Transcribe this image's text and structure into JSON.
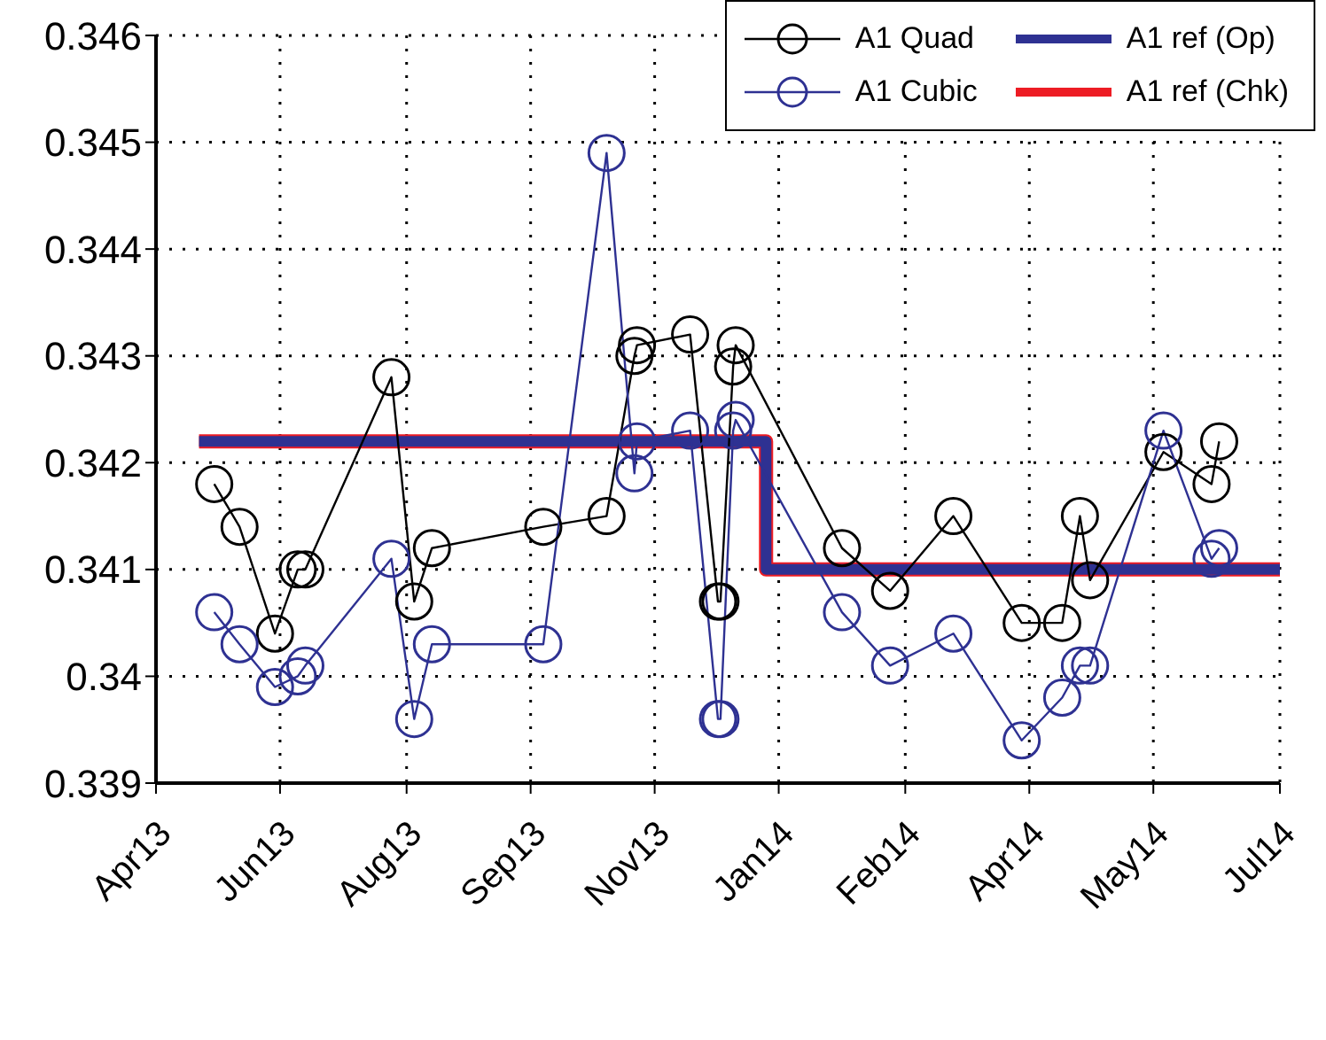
{
  "chart_data": {
    "type": "line",
    "x": [
      "2013-05-23",
      "2013-06-02",
      "2013-06-16",
      "2013-06-25",
      "2013-06-28",
      "2013-08-01",
      "2013-08-10",
      "2013-08-17",
      "2013-09-30",
      "2013-10-25",
      "2013-11-05",
      "2013-11-06",
      "2013-11-27",
      "2013-12-08",
      "2013-12-09",
      "2013-12-14",
      "2013-12-15",
      "2014-01-26",
      "2014-02-14",
      "2014-03-11",
      "2014-04-07",
      "2014-04-23",
      "2014-04-30",
      "2014-05-04",
      "2014-06-02",
      "2014-06-21",
      "2014-06-24"
    ],
    "series": [
      {
        "name": "A1 Quad",
        "color": "#000000",
        "values": [
          0.3418,
          0.3414,
          0.3404,
          0.341,
          0.341,
          0.3428,
          0.3407,
          0.3412,
          0.3414,
          0.3415,
          0.343,
          0.3431,
          0.3432,
          0.3407,
          0.3407,
          0.3429,
          0.3431,
          0.3412,
          0.3408,
          0.3415,
          0.3405,
          0.3405,
          0.3415,
          0.3409,
          0.3421,
          0.3418,
          0.3422
        ]
      },
      {
        "name": "A1 Cubic",
        "color": "#2e3192",
        "values": [
          0.3406,
          0.3403,
          0.3399,
          0.34,
          0.3401,
          0.3411,
          0.3396,
          0.3403,
          0.3403,
          0.3449,
          0.3419,
          0.3422,
          0.3423,
          0.3396,
          0.3396,
          0.3423,
          0.3424,
          0.3406,
          0.3401,
          0.3404,
          0.3394,
          0.3398,
          0.3401,
          0.3401,
          0.3423,
          0.3411,
          0.3412
        ]
      },
      {
        "name": "A1 ref (Op)",
        "type": "step",
        "marker": "none",
        "color": "#2e3192",
        "x": [
          "2013-05-17",
          "2013-12-27",
          "2014-07-18"
        ],
        "values": [
          0.3422,
          0.341,
          0.341
        ]
      },
      {
        "name": "A1 ref (Chk)",
        "type": "step",
        "marker": "none",
        "color": "#ed1c24",
        "x": [
          "2013-05-17",
          "2013-12-27",
          "2014-07-18"
        ],
        "values": [
          0.3422,
          0.341,
          0.341
        ]
      }
    ],
    "xlim": [
      "2013-04-30",
      "2014-07-18"
    ],
    "xticks": [
      {
        "value": "2013-04-30",
        "label": "Apr13"
      },
      {
        "value": "2013-06-18",
        "label": "Jun13"
      },
      {
        "value": "2013-08-07",
        "label": "Aug13"
      },
      {
        "value": "2013-09-25",
        "label": "Sep13"
      },
      {
        "value": "2013-11-13",
        "label": "Nov13"
      },
      {
        "value": "2014-01-01",
        "label": "Jan14"
      },
      {
        "value": "2014-02-20",
        "label": "Feb14"
      },
      {
        "value": "2014-04-10",
        "label": "Apr14"
      },
      {
        "value": "2014-05-29",
        "label": "May14"
      },
      {
        "value": "2014-07-18",
        "label": "Jul14"
      }
    ],
    "ylim": [
      0.339,
      0.346
    ],
    "yticks": [
      0.339,
      0.34,
      0.341,
      0.342,
      0.343,
      0.344,
      0.345,
      0.346
    ],
    "grid": true,
    "legend": "top right",
    "marker": "circle",
    "line_style": "solid"
  }
}
